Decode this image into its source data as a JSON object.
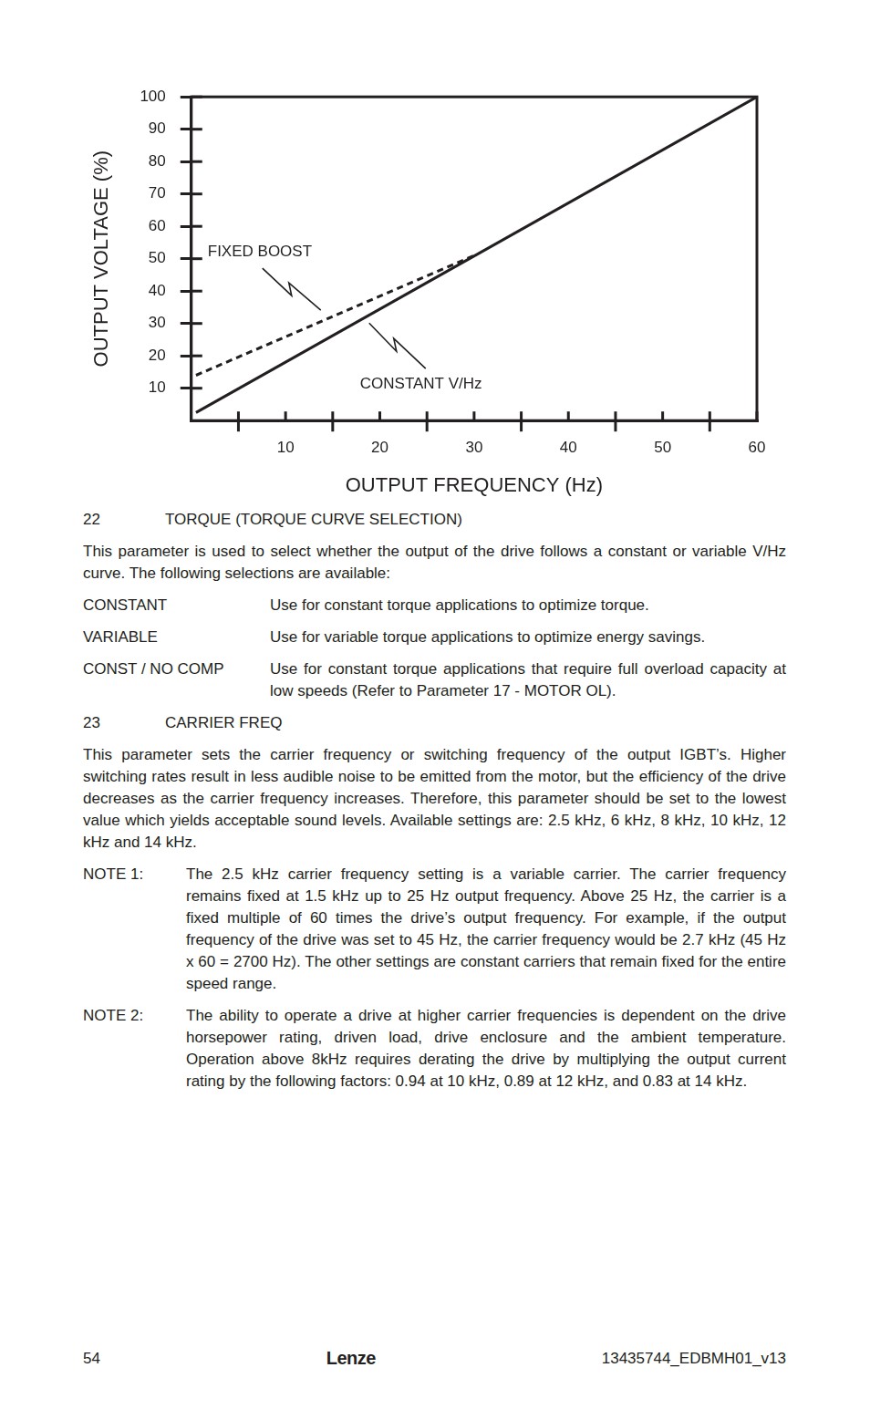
{
  "chart_data": {
    "type": "line",
    "x_label": "OUTPUT FREQUENCY (Hz)",
    "y_label": "OUTPUT VOLTAGE (%)",
    "xlim": [
      0,
      60
    ],
    "xticks": [
      10,
      20,
      30,
      40,
      50,
      60
    ],
    "ylim": [
      0,
      100
    ],
    "yticks": [
      10,
      20,
      30,
      40,
      50,
      60,
      70,
      80,
      90,
      100
    ],
    "grid": false,
    "series": [
      {
        "name": "FIXED BOOST",
        "color": "#231f20",
        "line_style": "dashed",
        "x": [
          0.5,
          30
        ],
        "values": [
          14,
          51
        ]
      },
      {
        "name": "CONSTANT V/Hz",
        "color": "#231f20",
        "line_style": "solid",
        "x": [
          0.5,
          60
        ],
        "values": [
          2.5,
          100
        ]
      }
    ]
  },
  "document": {
    "sections": [
      {
        "number": "22",
        "title": "TORQUE (TORQUE CURVE SELECTION)",
        "paragraphs": [
          "This parameter is used to select whether the output of the drive follows a constant or variable V/Hz curve. The following selections are available:"
        ],
        "options": [
          {
            "name": "CONSTANT",
            "description": "Use for constant torque applications to optimize torque."
          },
          {
            "name": "VARIABLE",
            "description": "Use for variable torque applications to optimize energy savings."
          },
          {
            "name": "CONST / NO COMP",
            "description": "Use for constant torque applications that require full overload capacity at low speeds (Refer to Parameter 17 - MOTOR OL)."
          }
        ]
      },
      {
        "number": "23",
        "title": "CARRIER FREQ",
        "paragraphs": [
          "This parameter sets the carrier frequency or switching frequency of the output IGBT’s. Higher switching rates result in less audible noise to be emitted from the motor, but the efficiency of the drive decreases as the carrier frequency increases. Therefore, this parameter should be set to the lowest value which yields acceptable sound levels. Available settings are: 2.5 kHz, 6 kHz, 8 kHz, 10 kHz, 12 kHz and 14 kHz."
        ],
        "notes": [
          {
            "label": "NOTE 1:",
            "text": "The 2.5 kHz carrier frequency setting is a variable carrier. The carrier frequency remains fixed at 1.5 kHz up to 25 Hz output frequency. Above 25 Hz, the carrier is a fixed multiple of 60 times the drive’s output frequency. For example, if the output frequency of the drive was set to 45 Hz, the carrier frequency would be 2.7 kHz (45 Hz x 60 = 2700 Hz). The other settings are constant carriers that remain fixed for the entire speed range."
          },
          {
            "label": "NOTE 2:",
            "text": "The ability to operate a drive at higher carrier frequencies is dependent on the drive horsepower rating, driven load, drive enclosure and the ambient temperature. Operation above 8kHz requires derating the drive by multiplying the output current rating by the following factors: 0.94 at 10 kHz, 0.89 at 12 kHz, and 0.83 at 14 kHz."
          }
        ]
      }
    ],
    "footer": {
      "page": "54",
      "brand": "Lenze",
      "doc_id": "13435744_EDBMH01_v13"
    }
  }
}
